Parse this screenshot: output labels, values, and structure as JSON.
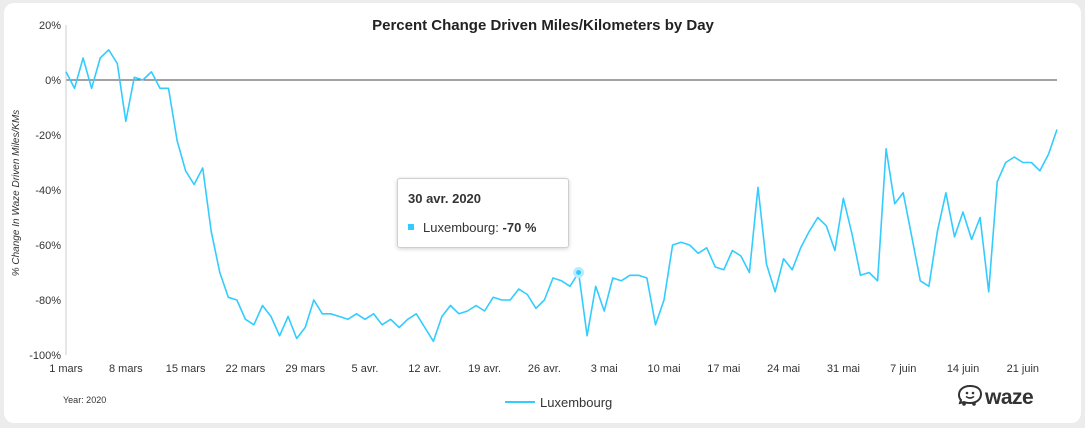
{
  "chart_data": {
    "type": "line",
    "title": "Percent Change Driven Miles/Kilometers by Day",
    "ylabel": "% Change In Waze Driven Miles/KMs",
    "xlabel": "",
    "ylim": [
      -100,
      20
    ],
    "yticks": [
      20,
      0,
      -20,
      -40,
      -60,
      -80,
      -100
    ],
    "ytick_labels": [
      "20%",
      "0%",
      "-20%",
      "-40%",
      "-60%",
      "-80%",
      "-100%"
    ],
    "xticks": [
      "1 mars",
      "8 mars",
      "15 mars",
      "22 mars",
      "29 mars",
      "5 avr.",
      "12 avr.",
      "19 avr.",
      "26 avr.",
      "3 mai",
      "10 mai",
      "17 mai",
      "24 mai",
      "31 mai",
      "7 juin",
      "14 juin",
      "21 juin"
    ],
    "grid": false,
    "legend": "bottom-center",
    "series": [
      {
        "name": "Luxembourg",
        "color": "#33ccff",
        "values": [
          3,
          -3,
          8,
          -3,
          8,
          11,
          6,
          -15,
          1,
          0,
          3,
          -3,
          -3,
          -22,
          -33,
          -38,
          -32,
          -55,
          -70,
          -79,
          -80,
          -87,
          -89,
          -82,
          -86,
          -93,
          -86,
          -94,
          -90,
          -80,
          -85,
          -85,
          -86,
          -87,
          -85,
          -87,
          -85,
          -89,
          -87,
          -90,
          -87,
          -85,
          -90,
          -95,
          -86,
          -82,
          -85,
          -84,
          -82,
          -84,
          -79,
          -80,
          -80,
          -76,
          -78,
          -83,
          -80,
          -72,
          -73,
          -75,
          -70,
          -93,
          -75,
          -84,
          -72,
          -73,
          -71,
          -71,
          -72,
          -89,
          -80,
          -60,
          -59,
          -60,
          -63,
          -61,
          -68,
          -69,
          -62,
          -64,
          -70,
          -39,
          -67,
          -77,
          -65,
          -69,
          -61,
          -55,
          -50,
          -53,
          -62,
          -43,
          -56,
          -71,
          -70,
          -73,
          -25,
          -45,
          -41,
          -57,
          -73,
          -75,
          -55,
          -41,
          -57,
          -48,
          -58,
          -50,
          -77,
          -37,
          -30,
          -28,
          -30,
          -30,
          -33,
          -27,
          -18
        ]
      }
    ],
    "tooltip": {
      "date": "30 avr. 2020",
      "series": "Luxembourg",
      "value": "-70 %",
      "index": 60
    },
    "annotation": "Year: 2020"
  },
  "brand": {
    "logo_text": "waze",
    "icon": "waze-smiley-icon"
  }
}
